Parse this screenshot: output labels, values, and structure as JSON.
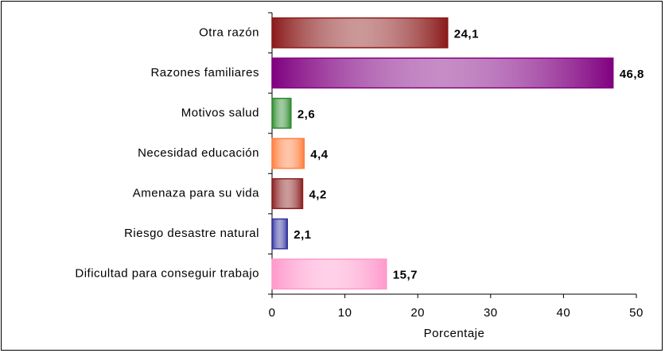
{
  "chart_data": {
    "type": "bar",
    "orientation": "horizontal",
    "categories": [
      "Otra razón",
      "Razones familiares",
      "Motivos salud",
      "Necesidad educación",
      "Amenaza para su vida",
      "Riesgo desastre natural",
      "Dificultad para conseguir trabajo"
    ],
    "values": [
      24.1,
      46.8,
      2.6,
      4.4,
      4.2,
      2.1,
      15.7
    ],
    "value_labels": [
      "24,1",
      "46,8",
      "2,6",
      "4,4",
      "4,2",
      "2,1",
      "15,7"
    ],
    "colors": [
      "#8b1a1a",
      "#800080",
      "#2e8b2e",
      "#ff7f3f",
      "#8b2020",
      "#33339f",
      "#ff99cc"
    ],
    "xlabel": "Porcentaje",
    "xlim": [
      0,
      50
    ],
    "xticks": [
      0,
      10,
      20,
      30,
      40,
      50
    ],
    "grid": false
  }
}
